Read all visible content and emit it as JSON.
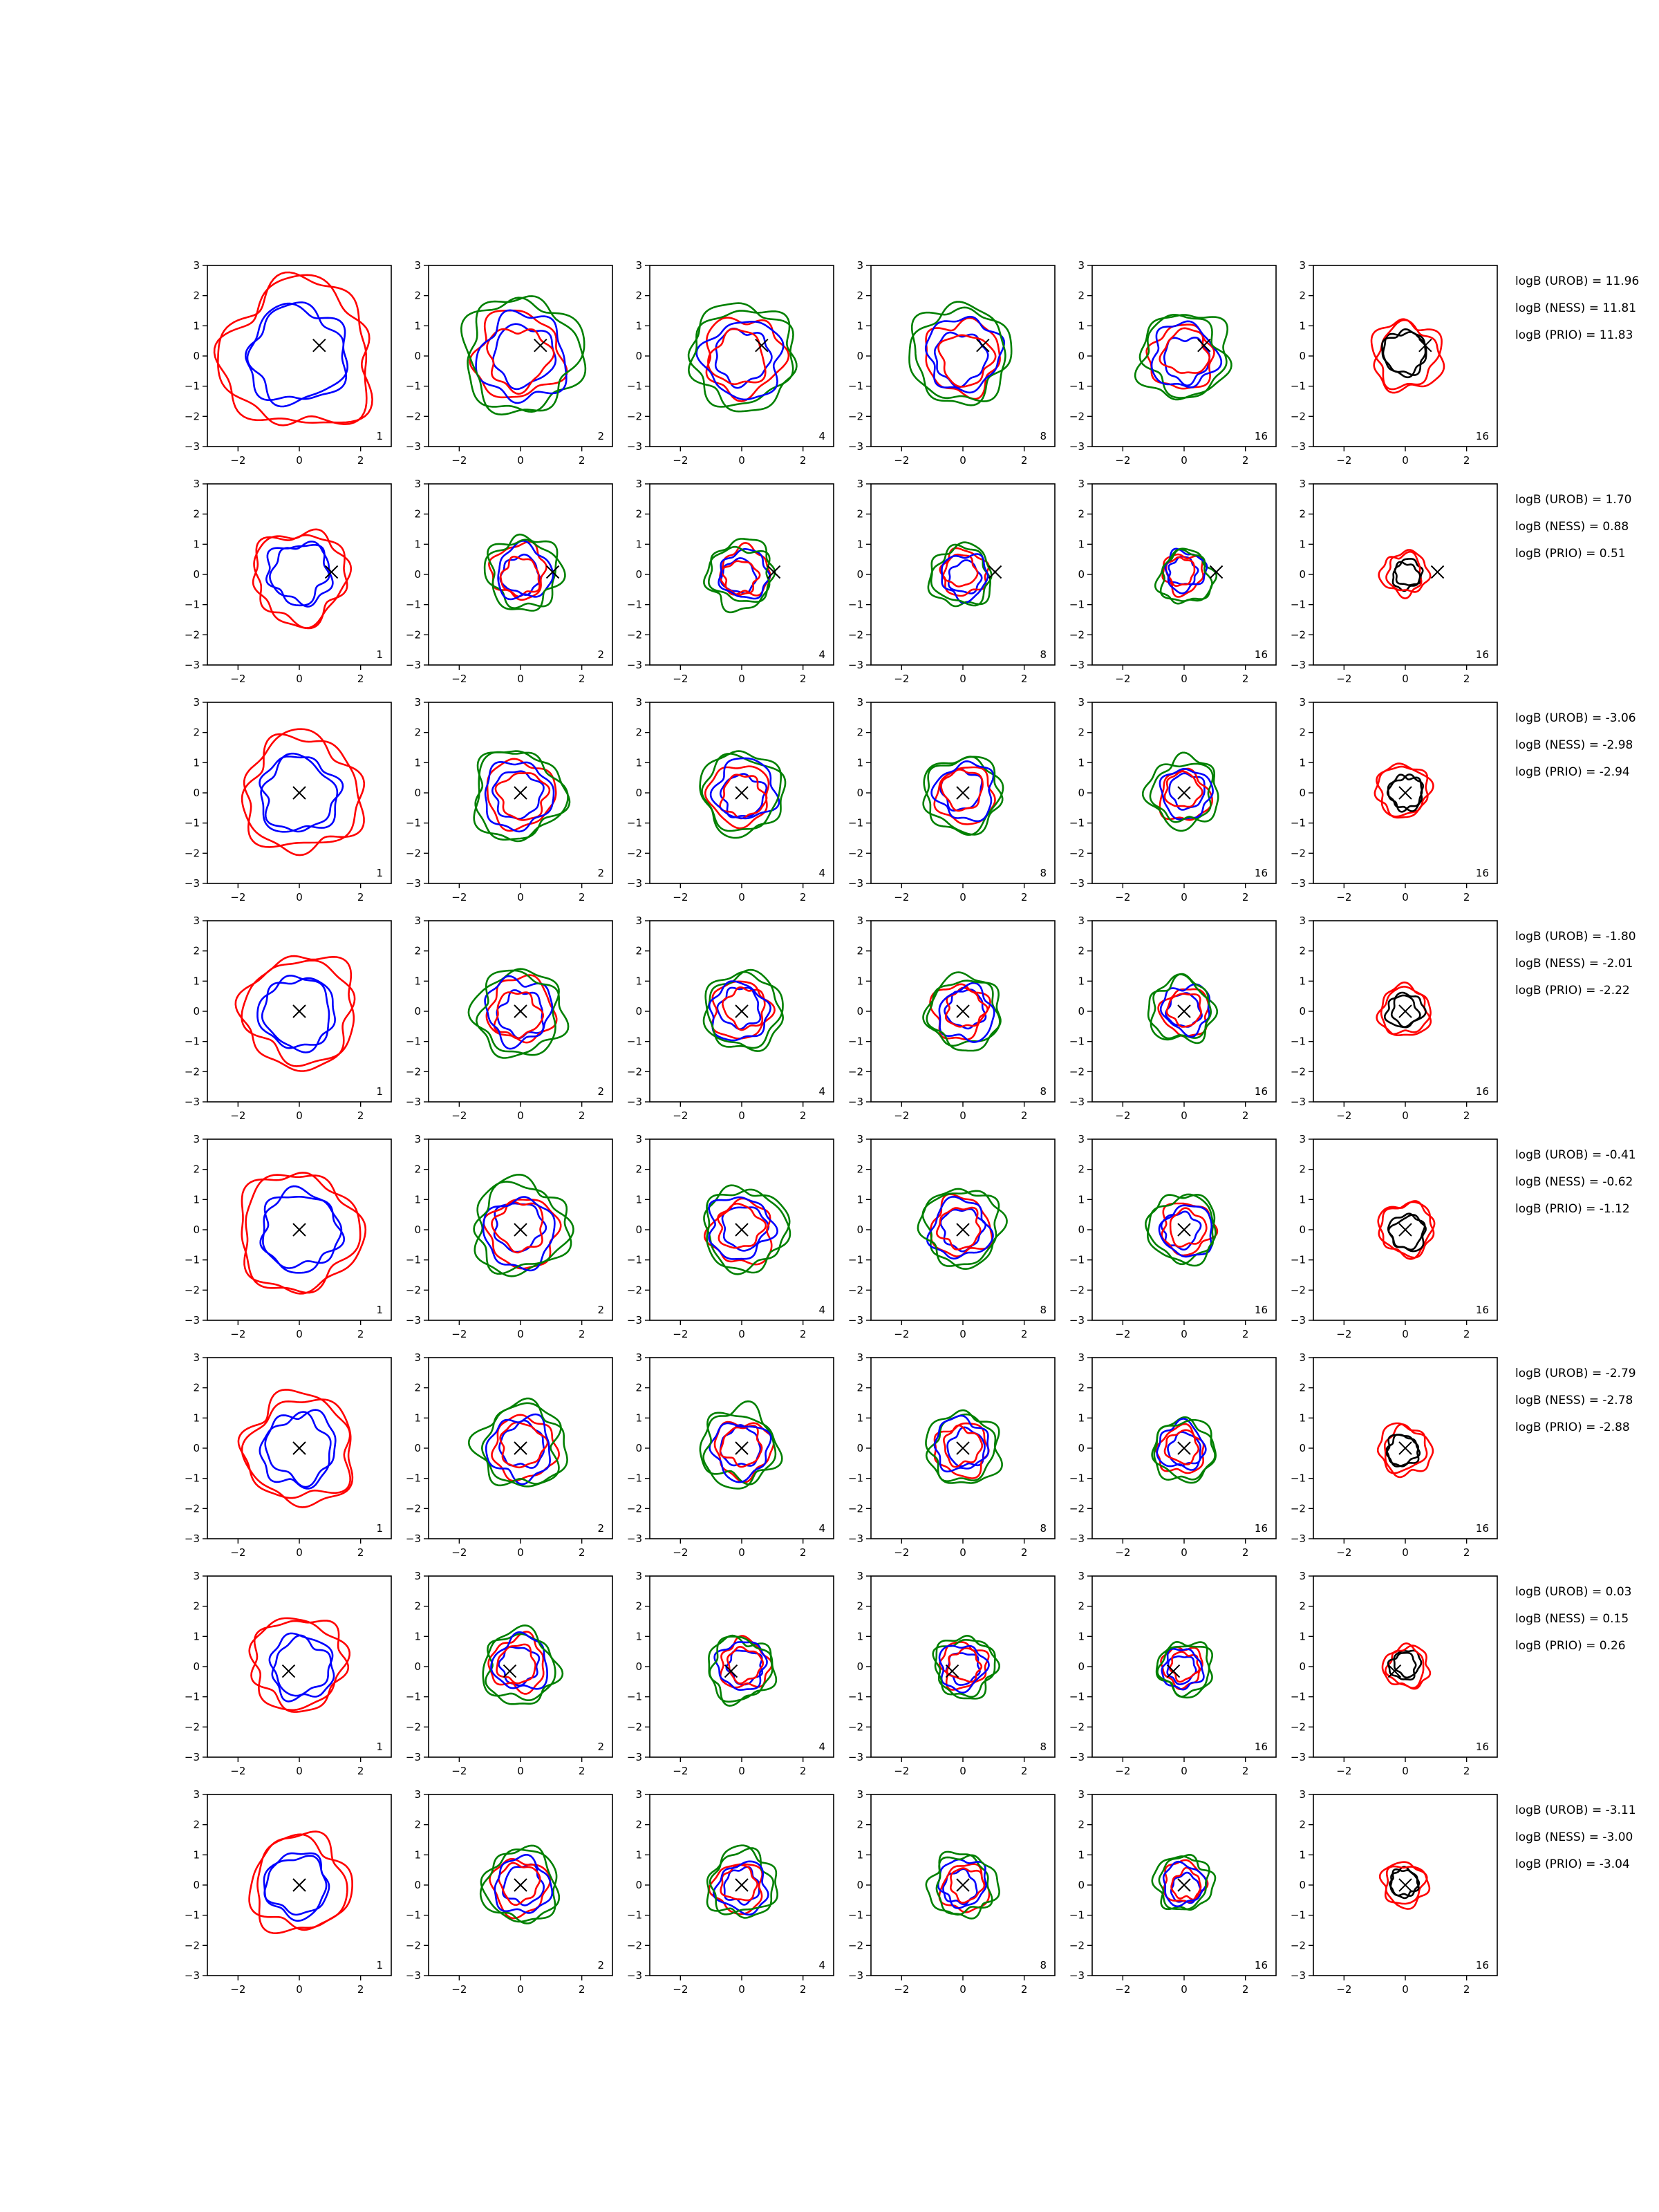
{
  "chart_data": {
    "type": "contour-grid",
    "xlim": [
      -3,
      3
    ],
    "ylim": [
      -3,
      3
    ],
    "x_ticks": [
      -2,
      0,
      2
    ],
    "x_tick_labels": [
      "−2",
      "0",
      "2"
    ],
    "y_ticks": [
      -3,
      -2,
      -1,
      0,
      1,
      2,
      3
    ],
    "y_tick_labels": [
      "−3",
      "−2",
      "−1",
      "0",
      "1",
      "2",
      "3"
    ],
    "grid": false,
    "colors": {
      "blue": "#0000ff",
      "red": "#ff0000",
      "green": "#008000",
      "black": "#000000"
    },
    "column_corner_labels": [
      "1",
      "2",
      "4",
      "8",
      "16",
      "16"
    ],
    "rows": [
      {
        "marker": [
          0.65,
          0.35
        ],
        "size": 1.0,
        "logB": [
          "logB (UROB) = 11.96",
          "logB (NESS) = 11.81",
          "logB (PRIO) = 11.83"
        ]
      },
      {
        "marker": [
          1.05,
          0.08
        ],
        "size": 0.62,
        "logB": [
          "logB (UROB) = 1.70",
          "logB (NESS) = 0.88",
          "logB (PRIO) = 0.51"
        ]
      },
      {
        "marker": [
          0.0,
          0.0
        ],
        "size": 0.78,
        "logB": [
          "logB (UROB) = -3.06",
          "logB (NESS) = -2.98",
          "logB (PRIO) = -2.94"
        ]
      },
      {
        "marker": [
          0.0,
          0.0
        ],
        "size": 0.74,
        "logB": [
          "logB (UROB) = -1.80",
          "logB (NESS) = -2.01",
          "logB (PRIO) = -2.22"
        ]
      },
      {
        "marker": [
          0.0,
          0.0
        ],
        "size": 0.8,
        "logB": [
          "logB (UROB) = -0.41",
          "logB (NESS) = -0.62",
          "logB (PRIO) = -1.12"
        ]
      },
      {
        "marker": [
          0.0,
          0.0
        ],
        "size": 0.72,
        "logB": [
          "logB (UROB) = -2.79",
          "logB (NESS) = -2.78",
          "logB (PRIO) = -2.88"
        ]
      },
      {
        "marker": [
          -0.35,
          -0.15
        ],
        "size": 0.62,
        "logB": [
          "logB (UROB) = 0.03",
          "logB (NESS) = 0.15",
          "logB (PRIO) = 0.26"
        ]
      },
      {
        "marker": [
          0.0,
          0.0
        ],
        "size": 0.64,
        "logB": [
          "logB (UROB) = -3.11",
          "logB (NESS) = -3.00",
          "logB (PRIO) = -3.04"
        ]
      }
    ]
  }
}
